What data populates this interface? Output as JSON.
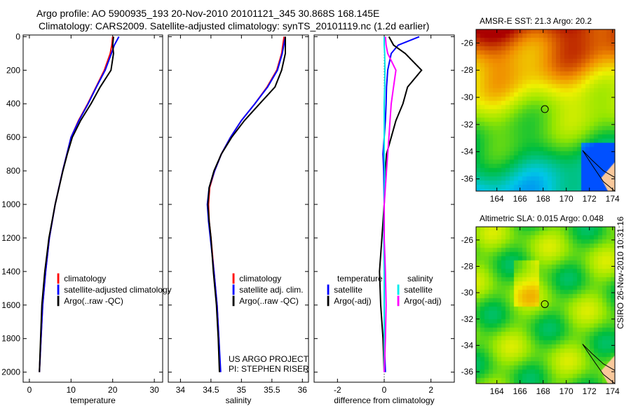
{
  "title": {
    "line1": "Argo profile: AO 5900935_193 20-Nov-2010 20101121_345 30.868S 168.145E",
    "line2": "Climatology: CARS2009. Satellite-adjusted climatology: synTS_20101119.nc (1.2d earlier)"
  },
  "credit": {
    "project": "US ARGO PROJECT",
    "pi": "PI: STEPHEN RISER",
    "stamp": "CSIRO 26-Nov-2010 10:31:16"
  },
  "colors": {
    "climatology": "#ff0000",
    "satellite": "#0000ff",
    "argo": "#000000",
    "sal_satellite": "#00e5e5",
    "sal_argo": "#ff00ff"
  },
  "chart_data": [
    {
      "type": "line",
      "xlabel": "temperature",
      "xlim": [
        -1.5,
        32
      ],
      "xticks": [
        0,
        10,
        20,
        30
      ],
      "ylim": [
        -10,
        2060
      ],
      "yticks": [
        0,
        200,
        400,
        600,
        800,
        1000,
        1200,
        1400,
        1600,
        1800,
        2000
      ],
      "yreversed": true,
      "legend": [
        "climatology",
        "satellite-adjusted climatology",
        "Argo(..raw -QC)"
      ],
      "depth": [
        0,
        50,
        100,
        200,
        300,
        400,
        500,
        600,
        700,
        800,
        1000,
        1200,
        1400,
        1600,
        1800,
        2000
      ],
      "series": [
        {
          "name": "climatology",
          "color": "#ff0000",
          "values": [
            20.0,
            19.8,
            19.4,
            18.0,
            16.0,
            14.0,
            11.8,
            10.0,
            9.0,
            8.0,
            6.2,
            4.8,
            3.9,
            3.2,
            2.8,
            2.4
          ]
        },
        {
          "name": "satellite-adjusted climatology",
          "color": "#0000ff",
          "values": [
            21.5,
            20.4,
            19.7,
            18.2,
            16.1,
            14.1,
            11.9,
            10.0,
            9.0,
            8.0,
            6.2,
            4.8,
            3.9,
            3.2,
            2.8,
            2.4
          ]
        },
        {
          "name": "Argo(..raw -QC)",
          "color": "#000000",
          "values": [
            20.2,
            20.0,
            20.2,
            19.6,
            17.0,
            14.8,
            12.3,
            10.3,
            9.1,
            8.05,
            6.2,
            4.7,
            3.7,
            3.0,
            2.7,
            2.4
          ]
        }
      ]
    },
    {
      "type": "line",
      "xlabel": "salinity",
      "xlim": [
        33.8,
        36.1
      ],
      "xticks": [
        34,
        34.5,
        35,
        35.5,
        36
      ],
      "ylim": [
        -10,
        2060
      ],
      "yreversed": true,
      "legend": [
        "climatology",
        "satellite adj. clim.",
        "Argo(..raw -QC)"
      ],
      "depth": [
        0,
        100,
        200,
        300,
        400,
        500,
        600,
        700,
        800,
        900,
        1000,
        1100,
        1200,
        1400,
        1600,
        1800,
        2000
      ],
      "series": [
        {
          "name": "climatology",
          "color": "#ff0000",
          "values": [
            35.7,
            35.66,
            35.58,
            35.42,
            35.22,
            35.0,
            34.82,
            34.67,
            34.56,
            34.48,
            34.46,
            34.47,
            34.5,
            34.55,
            34.6,
            34.63,
            34.65
          ]
        },
        {
          "name": "satellite adj. clim.",
          "color": "#0000ff",
          "values": [
            35.72,
            35.67,
            35.59,
            35.43,
            35.22,
            35.0,
            34.82,
            34.67,
            34.56,
            34.47,
            34.44,
            34.46,
            34.49,
            34.55,
            34.6,
            34.63,
            34.66
          ]
        },
        {
          "name": "Argo(..raw -QC)",
          "color": "#000000",
          "values": [
            35.72,
            35.72,
            35.66,
            35.55,
            35.3,
            35.05,
            34.84,
            34.67,
            34.55,
            34.47,
            34.45,
            34.47,
            34.5,
            34.54,
            34.59,
            34.62,
            34.64
          ]
        }
      ]
    },
    {
      "type": "line",
      "xlabel": "difference from climatology",
      "xlim": [
        -3,
        3
      ],
      "xticks": [
        -2,
        0,
        2
      ],
      "ylim": [
        -10,
        2060
      ],
      "yreversed": true,
      "legend": {
        "temperature": [
          "temperature",
          "satellite",
          "Argo(-adj)"
        ],
        "salinity": [
          "salinity",
          "satellite",
          "Argo(-adj)"
        ]
      },
      "depth": [
        0,
        50,
        100,
        200,
        300,
        400,
        500,
        600,
        700,
        800,
        1000,
        1200,
        1400,
        1600,
        1800,
        2000
      ],
      "series": [
        {
          "name": "temperature satellite",
          "color": "#0000ff",
          "values": [
            1.5,
            0.6,
            0.3,
            0.15,
            0.1,
            0.08,
            0.05,
            0.0,
            -0.05,
            -0.02,
            0.0,
            0.0,
            0.0,
            0.0,
            0.0,
            0.05
          ]
        },
        {
          "name": "temperature Argo(-adj)",
          "color": "#000000",
          "values": [
            0.2,
            0.4,
            0.9,
            1.6,
            1.0,
            0.8,
            0.5,
            0.3,
            0.1,
            0.05,
            0.0,
            -0.1,
            -0.2,
            -0.15,
            -0.05,
            0.0
          ]
        },
        {
          "name": "salinity satellite",
          "color": "#00e5e5",
          "values": [
            0.0,
            0.0,
            0.02,
            0.03,
            0.02,
            0.0,
            0.0,
            0.0,
            0.0,
            0.02,
            0.0,
            -0.02,
            0.0,
            0.0,
            0.0,
            0.0
          ]
        },
        {
          "name": "salinity Argo(-adj)",
          "color": "#ff00ff",
          "values": [
            0.05,
            0.08,
            0.15,
            0.5,
            0.4,
            0.3,
            0.25,
            0.2,
            0.15,
            0.1,
            0.0,
            0.0,
            0.05,
            0.08,
            0.05,
            0.0
          ]
        }
      ]
    },
    {
      "type": "heatmap",
      "title": "AMSR-E SST: 21.3 Argo: 20.2",
      "xlim": [
        162.2,
        174.2
      ],
      "xticks": [
        164,
        166,
        168,
        170,
        172,
        174
      ],
      "ylim": [
        -36.9,
        -25
      ],
      "yticks": [
        -26,
        -28,
        -30,
        -32,
        -34,
        -36
      ],
      "marker": {
        "lon": 168.145,
        "lat": -30.868
      }
    },
    {
      "type": "heatmap",
      "title": "Altimetric SLA: 0.015 Argo: 0.048",
      "xlim": [
        162.2,
        174.2
      ],
      "xticks": [
        164,
        166,
        168,
        170,
        172,
        174
      ],
      "ylim": [
        -36.9,
        -25
      ],
      "yticks": [
        -26,
        -28,
        -30,
        -32,
        -34,
        -36
      ],
      "marker": {
        "lon": 168.145,
        "lat": -30.868
      }
    }
  ]
}
